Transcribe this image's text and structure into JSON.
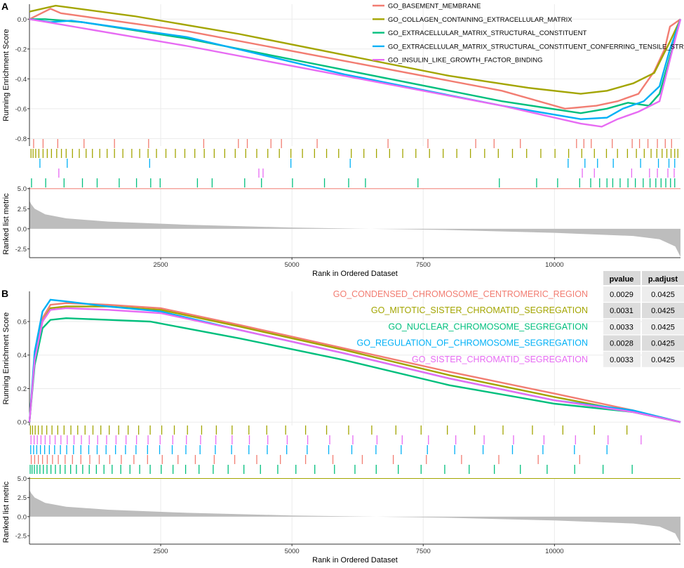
{
  "figure": {
    "panel_a_letter": "A",
    "panel_b_letter": "B",
    "colors": {
      "red": "#f27d72",
      "olive": "#a3a500",
      "green": "#00bf7d",
      "blue": "#00b0f6",
      "pink": "#e76bf3",
      "metric": "#bdbdbd"
    }
  },
  "chart_data": [
    {
      "type": "line",
      "panel": "A",
      "ylabel": "Running Enrichment Score",
      "ylim": [
        -0.85,
        0.1
      ],
      "yticks": [
        "0.0",
        "-0.2",
        "-0.4",
        "-0.6",
        "-0.8"
      ],
      "ytick_values": [
        0.0,
        -0.2,
        -0.4,
        -0.6,
        -0.8
      ],
      "xlim": [
        1,
        12400
      ],
      "grid": true,
      "legend_position": "top-right",
      "series": [
        {
          "name": "GO_BASEMENT_MEMBRANE",
          "color": "#f27d72",
          "x": [
            1,
            400,
            600,
            3000,
            6000,
            9000,
            10200,
            10800,
            11200,
            11600,
            11900,
            12100,
            12200,
            12400
          ],
          "y": [
            0.0,
            0.07,
            0.04,
            -0.08,
            -0.28,
            -0.48,
            -0.6,
            -0.58,
            -0.55,
            -0.5,
            -0.35,
            -0.2,
            -0.05,
            0.0
          ]
        },
        {
          "name": "GO_COLLAGEN_CONTAINING_EXTRACELLULAR_MATRIX",
          "color": "#a3a500",
          "x": [
            1,
            500,
            2000,
            4000,
            6000,
            8000,
            9500,
            10500,
            11000,
            11500,
            11900,
            12200,
            12400
          ],
          "y": [
            0.05,
            0.09,
            0.02,
            -0.1,
            -0.24,
            -0.38,
            -0.46,
            -0.5,
            -0.48,
            -0.43,
            -0.36,
            -0.15,
            0.0
          ]
        },
        {
          "name": "GO_EXTRACELLULAR_MATRIX_STRUCTURAL_CONSTITUENT",
          "color": "#00bf7d",
          "x": [
            1,
            300,
            1000,
            3000,
            6000,
            9000,
            10500,
            11000,
            11400,
            11800,
            12000,
            12200,
            12400
          ],
          "y": [
            0.0,
            0.0,
            -0.02,
            -0.13,
            -0.34,
            -0.55,
            -0.63,
            -0.6,
            -0.56,
            -0.58,
            -0.5,
            -0.25,
            0.0
          ]
        },
        {
          "name": "GO_EXTRACELLULAR_MATRIX_STRUCTURAL_CONSTITUENT_CONFERRING_TENSILE_STRENGTH",
          "color": "#00b0f6",
          "x": [
            1,
            400,
            800,
            3000,
            6000,
            9000,
            10500,
            11000,
            11300,
            11700,
            12000,
            12200,
            12400
          ],
          "y": [
            0.0,
            -0.02,
            -0.01,
            -0.12,
            -0.37,
            -0.58,
            -0.67,
            -0.66,
            -0.6,
            -0.55,
            -0.45,
            -0.2,
            0.0
          ]
        },
        {
          "name": "GO_INSULIN_LIKE_GROWTH_FACTOR_BINDING",
          "color": "#e76bf3",
          "x": [
            1,
            500,
            1000,
            3000,
            6000,
            9000,
            10500,
            10900,
            11200,
            11600,
            12000,
            12250,
            12400
          ],
          "y": [
            0.0,
            -0.03,
            -0.06,
            -0.18,
            -0.38,
            -0.58,
            -0.7,
            -0.72,
            -0.67,
            -0.62,
            -0.55,
            -0.2,
            0.0
          ]
        }
      ]
    },
    {
      "type": "line",
      "panel": "B",
      "ylabel": "Running Enrichment Score",
      "ylim": [
        -0.02,
        0.78
      ],
      "yticks": [
        "0.0",
        "0.2",
        "0.4",
        "0.6"
      ],
      "ytick_values": [
        0.0,
        0.2,
        0.4,
        0.6
      ],
      "xlim": [
        1,
        12400
      ],
      "grid": true,
      "series": [
        {
          "name": "GO_CONDENSED_CHROMOSOME_CENTROMERIC_REGION",
          "color": "#f27d72",
          "x": [
            1,
            100,
            250,
            400,
            700,
            1500,
            2500,
            4000,
            6000,
            8000,
            10000,
            11500,
            12400
          ],
          "y": [
            0.0,
            0.4,
            0.62,
            0.7,
            0.71,
            0.7,
            0.68,
            0.58,
            0.44,
            0.3,
            0.17,
            0.07,
            0.0
          ]
        },
        {
          "name": "GO_MITOTIC_SISTER_CHROMATID_SEGREGATION",
          "color": "#a3a500",
          "x": [
            1,
            100,
            250,
            400,
            700,
            1500,
            2500,
            4000,
            6000,
            8000,
            10000,
            11500,
            12400
          ],
          "y": [
            0.0,
            0.38,
            0.6,
            0.68,
            0.69,
            0.69,
            0.67,
            0.57,
            0.43,
            0.28,
            0.15,
            0.06,
            0.0
          ]
        },
        {
          "name": "GO_NUCLEAR_CHROMOSOME_SEGREGATION",
          "color": "#00bf7d",
          "x": [
            1,
            100,
            250,
            400,
            700,
            1500,
            2300,
            4000,
            6000,
            8000,
            10000,
            11500,
            12400
          ],
          "y": [
            0.0,
            0.34,
            0.56,
            0.61,
            0.62,
            0.61,
            0.6,
            0.5,
            0.37,
            0.22,
            0.11,
            0.06,
            0.0
          ]
        },
        {
          "name": "GO_REGULATION_OF_CHROMOSOME_SEGREGATION",
          "color": "#00b0f6",
          "x": [
            1,
            100,
            250,
            400,
            700,
            1500,
            2500,
            4000,
            6000,
            8000,
            10000,
            11500,
            12400
          ],
          "y": [
            0.0,
            0.42,
            0.66,
            0.73,
            0.72,
            0.69,
            0.66,
            0.55,
            0.41,
            0.26,
            0.13,
            0.07,
            0.0
          ]
        },
        {
          "name": "GO_SISTER_CHROMATID_SEGREGATION",
          "color": "#e76bf3",
          "x": [
            1,
            100,
            250,
            400,
            700,
            1500,
            2500,
            4000,
            6000,
            8000,
            10000,
            11500,
            12400
          ],
          "y": [
            0.0,
            0.37,
            0.6,
            0.67,
            0.68,
            0.67,
            0.65,
            0.55,
            0.41,
            0.26,
            0.13,
            0.06,
            0.0
          ]
        }
      ],
      "table": {
        "headers": [
          "pvalue",
          "p.adjust"
        ],
        "rows": [
          {
            "label": "GO_CONDENSED_CHROMOSOME_CENTROMERIC_REGION",
            "color": "#f27d72",
            "pvalue": "0.0029",
            "padjust": "0.0425"
          },
          {
            "label": "GO_MITOTIC_SISTER_CHROMATID_SEGREGATION",
            "color": "#a3a500",
            "pvalue": "0.0031",
            "padjust": "0.0425"
          },
          {
            "label": "GO_NUCLEAR_CHROMOSOME_SEGREGATION",
            "color": "#00bf7d",
            "pvalue": "0.0033",
            "padjust": "0.0425"
          },
          {
            "label": "GO_REGULATION_OF_CHROMOSOME_SEGREGATION",
            "color": "#00b0f6",
            "pvalue": "0.0028",
            "padjust": "0.0425"
          },
          {
            "label": "GO_SISTER_CHROMATID_SEGREGATION",
            "color": "#e76bf3",
            "pvalue": "0.0033",
            "padjust": "0.0425"
          }
        ]
      }
    },
    {
      "type": "area",
      "panel": "A-metric",
      "ylabel": "Ranked list metric",
      "xlabel": "Rank in Ordered Dataset",
      "ylim": [
        -3.6,
        5.5
      ],
      "yticks": [
        "5.0",
        "2.5",
        "0.0",
        "-2.5"
      ],
      "ytick_values": [
        5.0,
        2.5,
        0.0,
        -2.5
      ],
      "xticks": [
        "2500",
        "5000",
        "7500",
        "10000"
      ],
      "xtick_values": [
        2500,
        5000,
        7500,
        10000
      ],
      "xlim": [
        1,
        12400
      ],
      "x": [
        1,
        30,
        100,
        300,
        700,
        1500,
        3000,
        5000,
        6500,
        8000,
        10000,
        11500,
        12000,
        12300,
        12400
      ],
      "y": [
        3.5,
        3.1,
        2.5,
        1.8,
        1.3,
        0.9,
        0.5,
        0.15,
        0.0,
        -0.15,
        -0.5,
        -0.9,
        -1.3,
        -2.2,
        -3.5
      ]
    },
    {
      "type": "area",
      "panel": "B-metric",
      "ylabel": "Ranked list metric",
      "xlabel": "Rank in Ordered Dataset",
      "ylim": [
        -3.6,
        5.5
      ],
      "yticks": [
        "5.0",
        "2.5",
        "0.0",
        "-2.5"
      ],
      "ytick_values": [
        5.0,
        2.5,
        0.0,
        -2.5
      ],
      "xticks": [
        "2500",
        "5000",
        "7500",
        "10000"
      ],
      "xtick_values": [
        2500,
        5000,
        7500,
        10000
      ],
      "xlim": [
        1,
        12400
      ],
      "x": [
        1,
        30,
        100,
        300,
        700,
        1500,
        3000,
        5000,
        6500,
        8000,
        10000,
        11500,
        12000,
        12300,
        12400
      ],
      "y": [
        3.5,
        3.1,
        2.5,
        1.8,
        1.3,
        0.9,
        0.5,
        0.15,
        0.0,
        -0.15,
        -0.5,
        -0.9,
        -1.3,
        -2.2,
        -3.5
      ]
    }
  ],
  "hits": {
    "A": [
      {
        "name": "GO_BASEMENT_MEMBRANE",
        "color": "#f27d72",
        "ranks": [
          80,
          260,
          540,
          1040,
          1620,
          2270,
          3320,
          3980,
          4150,
          4600,
          4800,
          5480,
          6830,
          7590,
          8500,
          8850,
          9350,
          10420,
          10560,
          10700,
          11100,
          11480,
          11620,
          11780,
          11960,
          12110,
          12230
        ]
      },
      {
        "name": "GO_COLLAGEN_CONTAINING_EXTRACELLULAR_MATRIX",
        "color": "#a3a500",
        "ranks": [
          30,
          70,
          120,
          180,
          260,
          340,
          420,
          520,
          610,
          700,
          820,
          950,
          1080,
          1200,
          1340,
          1480,
          1620,
          1780,
          1950,
          2100,
          2260,
          2420,
          2600,
          2780,
          2960,
          3150,
          3330,
          3520,
          3720,
          3920,
          4120,
          4330,
          4540,
          4760,
          4980,
          5200,
          5430,
          5660,
          5890,
          6130,
          6370,
          6610,
          6860,
          7110,
          7360,
          7620,
          7880,
          8140,
          8400,
          8670,
          8930,
          9200,
          9470,
          9740,
          10010,
          10270,
          10520,
          10760,
          10990,
          11200,
          11390,
          11560,
          11710,
          11840,
          11950,
          12050,
          12140,
          12220,
          12290,
          12350
        ]
      },
      {
        "name": "GO_EXTRACELLULAR_MATRIX_STRUCTURAL_CONSTITUENT_CONFERRING_TENSILE_STRENGTH",
        "color": "#00b0f6",
        "ranks": [
          200,
          720,
          2290,
          4980,
          6110,
          10260,
          10580,
          10820,
          11120,
          11640,
          11980,
          12180,
          12290
        ]
      },
      {
        "name": "GO_INSULIN_LIKE_GROWTH_FACTOR_BINDING",
        "color": "#e76bf3",
        "ranks": [
          560,
          4370,
          4450,
          10530,
          10760,
          11470,
          11810,
          11960,
          12160,
          12280
        ]
      },
      {
        "name": "GO_EXTRACELLULAR_MATRIX_STRUCTURAL_CONSTITUENT",
        "color": "#00bf7d",
        "ranks": [
          40,
          310,
          660,
          1010,
          1290,
          1710,
          2040,
          2310,
          2490,
          3200,
          3480,
          4100,
          4420,
          5010,
          5620,
          6080,
          6400,
          7400,
          8950,
          9660,
          10060,
          10480,
          10690,
          10860,
          11000,
          11110,
          11250,
          11400,
          11540,
          11690,
          11820,
          11930,
          12030,
          12120,
          12210,
          12290
        ]
      }
    ],
    "B": [
      {
        "name": "GO_MITOTIC_SISTER_CHROMATID_SEGREGATION",
        "color": "#a3a500",
        "ranks": [
          20,
          60,
          110,
          170,
          240,
          330,
          430,
          540,
          660,
          790,
          920,
          1060,
          1210,
          1360,
          1520,
          1700,
          1880,
          2080,
          2300,
          2520,
          2760,
          3010,
          3280,
          3560,
          3860,
          4180,
          4520,
          4880,
          5260,
          5660,
          6080,
          6520,
          6980,
          7460,
          7960,
          8480,
          9020,
          9580,
          10160,
          10760,
          11380
        ]
      },
      {
        "name": "GO_SISTER_CHROMATID_SEGREGATION",
        "color": "#e76bf3",
        "ranks": [
          30,
          90,
          150,
          220,
          300,
          390,
          490,
          600,
          720,
          850,
          990,
          1140,
          1300,
          1470,
          1650,
          1840,
          2040,
          2260,
          2490,
          2730,
          2990,
          3260,
          3550,
          3860,
          4190,
          4540,
          4910,
          5300,
          5720,
          6160,
          6620,
          7100,
          7600,
          8120,
          8660,
          9220,
          9800,
          10400,
          11020,
          11650
        ]
      },
      {
        "name": "GO_REGULATION_OF_CHROMOSOME_SEGREGATION",
        "color": "#00b0f6",
        "ranks": [
          25,
          80,
          140,
          210,
          290,
          380,
          480,
          590,
          710,
          840,
          980,
          1130,
          1290,
          1460,
          1640,
          1830,
          2030,
          2250,
          2480,
          2720,
          2980,
          3250,
          3540,
          3850,
          4180,
          4530,
          4900,
          5290,
          5700,
          6140,
          6600,
          7080,
          7580,
          8100,
          8640,
          9200,
          9780,
          10380,
          11000
        ]
      },
      {
        "name": "GO_CONDENSED_CHROMOSOME_CENTROMERIC_REGION",
        "color": "#f27d72",
        "ranks": [
          35,
          100,
          170,
          250,
          340,
          440,
          550,
          680,
          820,
          980,
          1150,
          1330,
          1530,
          1750,
          1990,
          2250,
          2530,
          2830,
          3160,
          3520,
          3910,
          4330,
          4780,
          5260,
          5780,
          6340,
          6930,
          7560,
          8230,
          8940,
          9690,
          10480
        ]
      },
      {
        "name": "GO_NUCLEAR_CHROMOSOME_SEGREGATION",
        "color": "#00bf7d",
        "ranks": [
          15,
          50,
          95,
          145,
          200,
          265,
          335,
          410,
          495,
          585,
          680,
          785,
          895,
          1015,
          1140,
          1275,
          1420,
          1575,
          1740,
          1915,
          2100,
          2300,
          2510,
          2735,
          2975,
          3230,
          3500,
          3785,
          4085,
          4400,
          4730,
          5075,
          5435,
          5810,
          6200,
          6605,
          7025,
          7460,
          7910,
          8375,
          8855,
          9350,
          9860,
          10385,
          10925,
          11480
        ]
      }
    ]
  }
}
